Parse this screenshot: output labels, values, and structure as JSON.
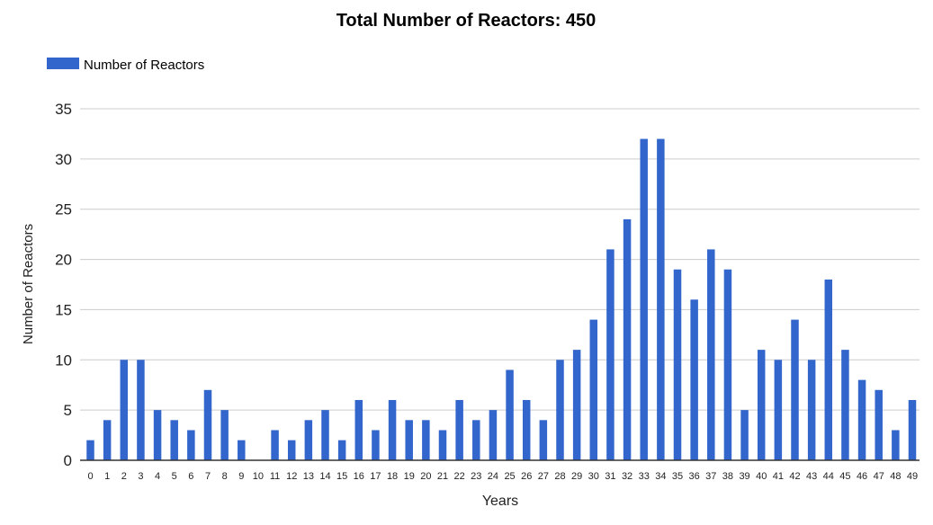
{
  "chart_data": {
    "type": "bar",
    "title": "Total Number of Reactors: 450",
    "xlabel": "Years",
    "ylabel": "Number of Reactors",
    "legend_position": "top-left",
    "grid": true,
    "ylim": [
      0,
      35
    ],
    "yticks": [
      0,
      5,
      10,
      15,
      20,
      25,
      30,
      35
    ],
    "categories": [
      "0",
      "1",
      "2",
      "3",
      "4",
      "5",
      "6",
      "7",
      "8",
      "9",
      "10",
      "11",
      "12",
      "13",
      "14",
      "15",
      "16",
      "17",
      "18",
      "19",
      "20",
      "21",
      "22",
      "23",
      "24",
      "25",
      "26",
      "27",
      "28",
      "29",
      "30",
      "31",
      "32",
      "33",
      "34",
      "35",
      "36",
      "37",
      "38",
      "39",
      "40",
      "41",
      "42",
      "43",
      "44",
      "45",
      "46",
      "47",
      "48",
      "49"
    ],
    "series": [
      {
        "name": "Number of Reactors",
        "color": "#3366cc",
        "values": [
          2,
          4,
          10,
          10,
          5,
          4,
          3,
          7,
          5,
          2,
          0,
          3,
          2,
          4,
          5,
          2,
          6,
          3,
          6,
          4,
          4,
          3,
          6,
          4,
          5,
          9,
          6,
          4,
          10,
          11,
          14,
          21,
          24,
          32,
          32,
          19,
          16,
          21,
          19,
          5,
          11,
          10,
          14,
          10,
          18,
          11,
          8,
          7,
          3,
          6
        ]
      }
    ]
  }
}
